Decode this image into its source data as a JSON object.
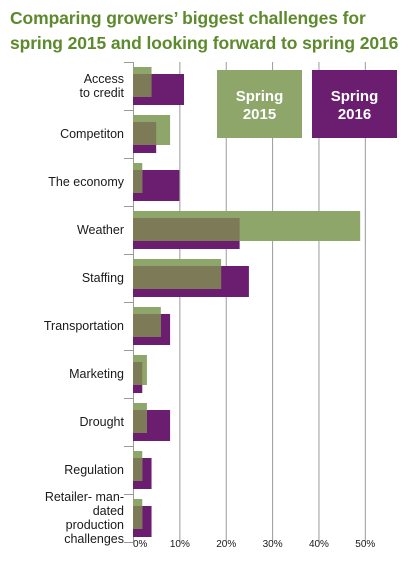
{
  "title_lines": [
    "Comparing growers’ biggest challenges for",
    "spring 2015 and looking forward to spring 2016"
  ],
  "chart_data": {
    "type": "bar",
    "orientation": "horizontal",
    "categories": [
      [
        "Access",
        "to credit"
      ],
      [
        "Competiton"
      ],
      [
        "The economy"
      ],
      [
        "Weather"
      ],
      [
        "Staffing"
      ],
      [
        "Transportation"
      ],
      [
        "Marketing"
      ],
      [
        "Drought"
      ],
      [
        "Regulation"
      ],
      [
        "Retailer- man-",
        "dated",
        "production",
        "challenges"
      ]
    ],
    "series": [
      {
        "name": [
          "Spring",
          "2015"
        ],
        "color": "#8ea66a",
        "values": [
          4,
          8,
          2,
          49,
          19,
          6,
          3,
          3,
          2,
          2
        ]
      },
      {
        "name": [
          "Spring",
          "2016"
        ],
        "color": "#6b1e6f",
        "values": [
          11,
          5,
          10,
          23,
          25,
          8,
          2,
          8,
          4,
          4
        ]
      }
    ],
    "xlim": [
      0,
      55
    ],
    "xticks": [
      0,
      10,
      20,
      30,
      40,
      50
    ],
    "xtick_labels": [
      "0%",
      "10%",
      "20%",
      "30%",
      "40%",
      "50%"
    ],
    "grid": true,
    "legend": "top-right",
    "overlap_color": "#7d7a58"
  }
}
